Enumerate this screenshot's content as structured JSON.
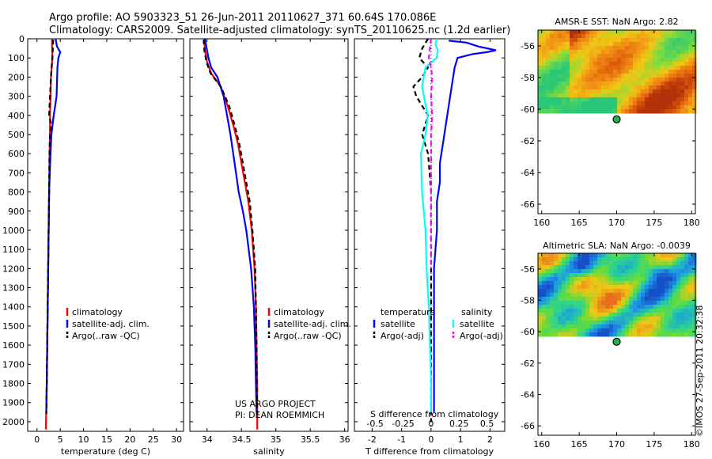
{
  "header": {
    "line1": "Argo profile: AO 5903323_51 26-Jun-2011 20110627_371 60.64S 170.086E",
    "line2": "Climatology: CARS2009. Satellite-adjusted climatology: synTS_20110625.nc (1.2d earlier)"
  },
  "credit": "©IMOS 27-Sep-2011 20:32:38",
  "colors": {
    "climatology": "#ff0000",
    "satellite": "#0000ff",
    "argo": "#000000",
    "satellite_s": "#00ffff",
    "argo_s": "#ff00ff"
  },
  "chart_data": [
    {
      "type": "line",
      "xlabel": "temperature (deg C)",
      "ylim": [
        2050,
        0
      ],
      "xlim": [
        -2,
        31.5
      ],
      "xticks": [
        "0",
        "5",
        "10",
        "15",
        "20",
        "25",
        "30"
      ],
      "yticks": [
        "0",
        "100",
        "200",
        "300",
        "400",
        "500",
        "600",
        "700",
        "800",
        "900",
        "1000",
        "1100",
        "1200",
        "1300",
        "1400",
        "1500",
        "1600",
        "1700",
        "1800",
        "1900",
        "2000"
      ],
      "legend": [
        "climatology",
        "satellite-adj. clim.",
        "Argo(..raw -QC)"
      ],
      "series": [
        {
          "name": "climatology",
          "color": "#ff0000",
          "dash": false,
          "depth": [
            0,
            100,
            200,
            300,
            400,
            500,
            600,
            800,
            1000,
            1200,
            1400,
            1600,
            1800,
            1950,
            2040
          ],
          "values": [
            3.2,
            3.3,
            3.0,
            2.9,
            2.8,
            2.8,
            2.7,
            2.6,
            2.5,
            2.4,
            2.3,
            2.2,
            2.1,
            2.0,
            1.9
          ]
        },
        {
          "name": "satellite-adj. clim.",
          "color": "#0000ff",
          "dash": false,
          "depth": [
            0,
            40,
            70,
            100,
            150,
            300,
            400,
            500,
            600,
            800,
            1000,
            1200,
            1400,
            1600,
            1800,
            1950
          ],
          "values": [
            4.0,
            4.3,
            5.0,
            4.6,
            4.4,
            4.2,
            3.6,
            3.1,
            2.9,
            2.6,
            2.5,
            2.4,
            2.3,
            2.2,
            2.1,
            2.0
          ]
        },
        {
          "name": "Argo(..raw -QC)",
          "color": "#000000",
          "dash": true,
          "depth": [
            5,
            50,
            100,
            200,
            300,
            400,
            450,
            500,
            600,
            800,
            1000,
            1200,
            1400,
            1600,
            1800,
            1960
          ],
          "values": [
            3.5,
            3.4,
            3.3,
            3.0,
            2.8,
            2.6,
            3.1,
            2.8,
            2.7,
            2.6,
            2.5,
            2.4,
            2.3,
            2.2,
            2.1,
            2.0
          ]
        }
      ]
    },
    {
      "type": "line",
      "xlabel": "salinity",
      "ylim": [
        2050,
        0
      ],
      "xlim": [
        33.75,
        36.05
      ],
      "xticks": [
        "34",
        "34.5",
        "35",
        "35.5",
        "36"
      ],
      "legend": [
        "climatology",
        "satellite-adj. clim.",
        "Argo(..raw -QC)"
      ],
      "annotations": [
        "US ARGO PROJECT",
        "PI: DEAN ROEMMICH"
      ],
      "series": [
        {
          "name": "climatology",
          "color": "#ff0000",
          "dash": false,
          "depth": [
            0,
            60,
            120,
            180,
            250,
            350,
            450,
            550,
            650,
            750,
            850,
            1000,
            1200,
            1400,
            1600,
            1800,
            2040
          ],
          "values": [
            33.96,
            33.97,
            34.0,
            34.06,
            34.2,
            34.3,
            34.38,
            34.45,
            34.5,
            34.55,
            34.6,
            34.65,
            34.69,
            34.71,
            34.72,
            34.73,
            34.73
          ]
        },
        {
          "name": "satellite-adj. clim.",
          "color": "#0000ff",
          "dash": false,
          "depth": [
            0,
            60,
            100,
            150,
            200,
            300,
            400,
            500,
            600,
            700,
            800,
            900,
            1000,
            1200,
            1400,
            1600,
            1800,
            1950
          ],
          "values": [
            33.97,
            34.0,
            34.02,
            34.06,
            34.15,
            34.24,
            34.29,
            34.34,
            34.38,
            34.42,
            34.46,
            34.52,
            34.57,
            34.64,
            34.68,
            34.7,
            34.71,
            34.72
          ]
        },
        {
          "name": "Argo(..raw -QC)",
          "color": "#000000",
          "dash": true,
          "depth": [
            5,
            60,
            120,
            180,
            250,
            350,
            450,
            550,
            650,
            750,
            850,
            1000,
            1200,
            1400,
            1600,
            1800,
            1960
          ],
          "values": [
            33.95,
            33.96,
            33.99,
            34.05,
            34.2,
            34.32,
            34.4,
            34.47,
            34.52,
            34.57,
            34.62,
            34.66,
            34.7,
            34.71,
            34.72,
            34.72,
            34.73
          ]
        }
      ]
    },
    {
      "type": "line",
      "xlabel": "T difference from climatology",
      "xlabel2": "S difference from climatology",
      "ylim": [
        2050,
        0
      ],
      "xlim": [
        -2.6,
        2.5
      ],
      "xticks": [
        "-2",
        "-1",
        "0",
        "1",
        "2"
      ],
      "xticks2": [
        "-0.5",
        "-0.25",
        "0",
        "0.25",
        "0.5"
      ],
      "legend_t_title": "temperature",
      "legend_s_title": "salinity",
      "legend_t": [
        "satellite",
        "Argo(-adj)"
      ],
      "legend_s": [
        "satellite",
        "Argo(-adj)"
      ],
      "series": [
        {
          "name": "satellite",
          "color": "#0000ff",
          "dash": false,
          "units": "T",
          "depth": [
            10,
            20,
            40,
            60,
            70,
            80,
            100,
            150,
            250,
            350,
            450,
            550,
            650,
            750,
            850,
            1000,
            1200,
            1400,
            1600,
            1800,
            1950
          ],
          "values": [
            0.6,
            1.2,
            1.6,
            2.2,
            1.9,
            1.4,
            0.9,
            0.8,
            0.7,
            0.6,
            0.5,
            0.4,
            0.3,
            0.3,
            0.2,
            0.2,
            0.1,
            0.1,
            0.1,
            0.1,
            0.1
          ]
        },
        {
          "name": "Argo(-adj)",
          "color": "#000000",
          "dash": true,
          "units": "T",
          "depth": [
            0,
            50,
            100,
            150,
            200,
            250,
            300,
            400,
            500,
            600,
            700,
            800,
            900,
            1000,
            1200,
            1400,
            1600,
            1800,
            2000
          ],
          "values": [
            -0.1,
            -0.3,
            -0.4,
            -0.1,
            -0.3,
            -0.6,
            -0.5,
            -0.1,
            -0.3,
            -0.1,
            -0.05,
            0.0,
            0.0,
            0.0,
            0.0,
            0.0,
            0.0,
            0.0,
            0.0
          ]
        },
        {
          "name": "satellite",
          "color": "#00ffff",
          "dash": false,
          "units": "S",
          "depth": [
            0,
            30,
            60,
            100,
            150,
            250,
            400,
            500,
            600,
            800,
            1000,
            1200,
            1400,
            1600,
            1800,
            1950
          ],
          "values": [
            0.05,
            0.04,
            0.06,
            0.05,
            -0.05,
            -0.08,
            -0.03,
            -0.05,
            -0.09,
            -0.08,
            -0.05,
            -0.04,
            -0.02,
            -0.01,
            0.0,
            0.0
          ]
        },
        {
          "name": "Argo(-adj)",
          "color": "#ff00ff",
          "dash": true,
          "units": "S",
          "depth": [
            0,
            50,
            100,
            150,
            200,
            300,
            400,
            500,
            600,
            800,
            1000,
            1200
          ],
          "values": [
            0.0,
            -0.01,
            -0.02,
            0.0,
            0.01,
            0.0,
            0.01,
            0.0,
            0.0,
            0.0,
            0.0,
            0.0
          ]
        }
      ]
    }
  ],
  "maps": [
    {
      "title": "AMSR-E SST: NaN Argo: 2.82",
      "xticks": [
        "160",
        "165",
        "170",
        "175",
        "180"
      ],
      "yticks": [
        "-56",
        "-58",
        "-60",
        "-62",
        "-64",
        "-66"
      ],
      "marker": [
        170.0,
        -60.64
      ],
      "palette": "warm"
    },
    {
      "title": "Altimetric SLA: NaN Argo: -0.0039",
      "xticks": [
        "160",
        "165",
        "170",
        "175",
        "180"
      ],
      "yticks": [
        "-56",
        "-58",
        "-60",
        "-62",
        "-64",
        "-66"
      ],
      "marker": [
        170.0,
        -60.64
      ],
      "palette": "cool"
    }
  ]
}
